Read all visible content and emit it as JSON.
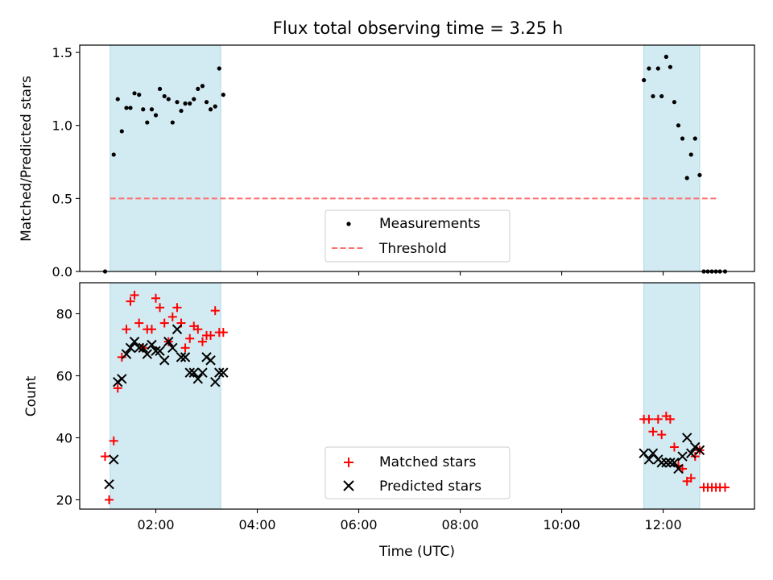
{
  "title": "Flux total observing time = 3.25 h",
  "colors": {
    "shade": "#add8e6",
    "measurement": "#000000",
    "threshold": "#ff6f6f",
    "matched": "#ff0000",
    "predicted": "#000000"
  },
  "chart_data": [
    {
      "type": "scatter",
      "panel": "top",
      "ylabel": "Matched/Predicted stars",
      "xlim": [
        0.5,
        13.8
      ],
      "ylim": [
        0.0,
        1.55
      ],
      "xticks": [
        2,
        4,
        6,
        8,
        10,
        12
      ],
      "yticks": [
        0.0,
        0.5,
        1.0,
        1.5
      ],
      "ytick_labels": [
        "0.0",
        "0.5",
        "1.0",
        "1.5"
      ],
      "shaded_x_ranges": [
        [
          1.1,
          3.28
        ],
        [
          11.62,
          12.72
        ]
      ],
      "threshold": {
        "name": "Threshold",
        "y": 0.5,
        "x_range": [
          1.1,
          13.1
        ],
        "style": "dashed"
      },
      "legend": {
        "placement": "lower-center",
        "entries": [
          "Measurements",
          "Threshold"
        ]
      },
      "series": [
        {
          "name": "Measurements",
          "x": [
            1.0,
            1.17,
            1.25,
            1.33,
            1.42,
            1.5,
            1.58,
            1.67,
            1.75,
            1.83,
            1.92,
            2.0,
            2.08,
            2.17,
            2.25,
            2.33,
            2.42,
            2.5,
            2.58,
            2.67,
            2.75,
            2.83,
            2.92,
            3.0,
            3.08,
            3.17,
            3.25,
            3.33,
            11.62,
            11.72,
            11.8,
            11.9,
            11.97,
            12.06,
            12.14,
            12.22,
            12.3,
            12.38,
            12.47,
            12.55,
            12.63,
            12.72,
            12.8,
            12.88,
            12.96,
            13.04,
            13.12,
            13.22
          ],
          "y": [
            0.0,
            0.8,
            1.18,
            0.96,
            1.12,
            1.12,
            1.22,
            1.21,
            1.11,
            1.02,
            1.11,
            1.07,
            1.25,
            1.2,
            1.18,
            1.02,
            1.16,
            1.1,
            1.15,
            1.15,
            1.18,
            1.25,
            1.27,
            1.16,
            1.11,
            1.13,
            1.39,
            1.21,
            1.31,
            1.39,
            1.2,
            1.39,
            1.2,
            1.47,
            1.4,
            1.16,
            1.0,
            0.91,
            0.64,
            0.8,
            0.91,
            0.66,
            0.0,
            0.0,
            0.0,
            0.0,
            0.0,
            0.0
          ]
        }
      ]
    },
    {
      "type": "scatter",
      "panel": "bottom",
      "xlabel": "Time (UTC)",
      "ylabel": "Count",
      "xlim": [
        0.5,
        13.8
      ],
      "ylim": [
        17,
        90
      ],
      "xticks": [
        2,
        4,
        6,
        8,
        10,
        12
      ],
      "xtick_labels": [
        "02:00",
        "04:00",
        "06:00",
        "08:00",
        "10:00",
        "12:00"
      ],
      "yticks": [
        20,
        40,
        60,
        80
      ],
      "ytick_labels": [
        "20",
        "40",
        "60",
        "80"
      ],
      "shaded_x_ranges": [
        [
          1.1,
          3.28
        ],
        [
          11.62,
          12.72
        ]
      ],
      "legend": {
        "placement": "lower-center",
        "entries": [
          "Matched stars",
          "Predicted stars"
        ]
      },
      "series": [
        {
          "name": "Matched stars",
          "marker": "plus",
          "x": [
            1.0,
            1.08,
            1.17,
            1.25,
            1.33,
            1.42,
            1.5,
            1.58,
            1.67,
            1.75,
            1.83,
            1.92,
            2.0,
            2.08,
            2.17,
            2.25,
            2.33,
            2.42,
            2.5,
            2.58,
            2.67,
            2.75,
            2.83,
            2.92,
            3.0,
            3.08,
            3.17,
            3.25,
            3.33,
            11.62,
            11.72,
            11.8,
            11.9,
            11.97,
            12.06,
            12.14,
            12.22,
            12.3,
            12.38,
            12.47,
            12.55,
            12.63,
            12.72,
            12.8,
            12.88,
            12.96,
            13.04,
            13.12,
            13.22
          ],
          "y": [
            34,
            20,
            39,
            56,
            66,
            75,
            84,
            86,
            77,
            69,
            75,
            75,
            85,
            82,
            77,
            71,
            79,
            82,
            77,
            69,
            72,
            76,
            75,
            71,
            73,
            73,
            81,
            74,
            74,
            46,
            46,
            42,
            46,
            41,
            47,
            46,
            37,
            31,
            30,
            26,
            27,
            34,
            36,
            24,
            24,
            24,
            24,
            24,
            24
          ]
        },
        {
          "name": "Predicted stars",
          "marker": "x",
          "x": [
            1.0,
            1.08,
            1.17,
            1.25,
            1.33,
            1.42,
            1.5,
            1.58,
            1.67,
            1.75,
            1.83,
            1.92,
            2.0,
            2.08,
            2.17,
            2.25,
            2.33,
            2.42,
            2.5,
            2.58,
            2.67,
            2.75,
            2.83,
            2.92,
            3.0,
            3.08,
            3.17,
            3.25,
            3.33,
            11.62,
            11.72,
            11.8,
            11.9,
            11.97,
            12.06,
            12.14,
            12.22,
            12.3,
            12.38,
            12.47,
            12.55,
            12.63,
            12.72
          ],
          "y": [
            null,
            25,
            33,
            58,
            59,
            67,
            69,
            71,
            69,
            69,
            67,
            70,
            68,
            68,
            65,
            71,
            69,
            75,
            66,
            66,
            61,
            61,
            59,
            61,
            66,
            65,
            58,
            61,
            61,
            35,
            33,
            35,
            33,
            32,
            32,
            32,
            32,
            30,
            34,
            40,
            35,
            37,
            36
          ]
        }
      ]
    }
  ]
}
